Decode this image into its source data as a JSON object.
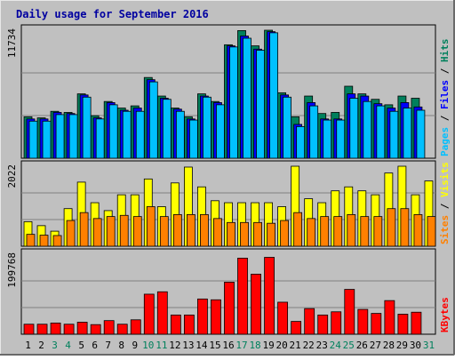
{
  "chart_data": {
    "type": "bar",
    "title": "Daily usage for September 2016",
    "days": [
      "1",
      "2",
      "3",
      "4",
      "5",
      "6",
      "7",
      "8",
      "9",
      "10",
      "11",
      "12",
      "13",
      "14",
      "15",
      "16",
      "17",
      "18",
      "19",
      "20",
      "21",
      "22",
      "23",
      "24",
      "25",
      "26",
      "27",
      "28",
      "29",
      "30",
      "31"
    ],
    "weekend_days": [
      "3",
      "4",
      "10",
      "11",
      "17",
      "18",
      "24",
      "25",
      "31"
    ],
    "panels": [
      {
        "id": "hits",
        "max_label": "11734",
        "ymax": 11734,
        "legend": [
          "Pages",
          "Files",
          "Hits"
        ],
        "series": [
          {
            "name": "Hits",
            "color": "#00805c",
            "values": [
              3800,
              3700,
              4300,
              4200,
              5900,
              3900,
              5200,
              4600,
              4800,
              7400,
              5700,
              4600,
              3800,
              5900,
              5200,
              10400,
              11700,
              10300,
              11734,
              6000,
              3800,
              5700,
              4100,
              4200,
              6600,
              5900,
              5400,
              4900,
              5700,
              5500,
              0
            ]
          },
          {
            "name": "Files",
            "color": "#0000ff",
            "values": [
              3600,
              3600,
              4200,
              4100,
              5800,
              3700,
              5100,
              4400,
              4600,
              7200,
              5500,
              4500,
              3600,
              5700,
              5100,
              10300,
              11200,
              10000,
              11600,
              5800,
              3100,
              5100,
              3600,
              3600,
              5900,
              5700,
              5000,
              4600,
              5100,
              4700,
              0
            ]
          },
          {
            "name": "Pages",
            "color": "#00c0ff",
            "values": [
              3400,
              3400,
              4000,
              4000,
              5600,
              3600,
              4900,
              4300,
              4300,
              7000,
              5400,
              4300,
              3500,
              5600,
              4900,
              10200,
              11000,
              9900,
              11500,
              5600,
              2900,
              4800,
              3500,
              3500,
              5500,
              5200,
              4800,
              4300,
              4600,
              4400,
              0
            ]
          }
        ]
      },
      {
        "id": "visits",
        "max_label": "2022",
        "ymax": 2022,
        "legend": [
          "Sites",
          "Visits"
        ],
        "series": [
          {
            "name": "Visits",
            "color": "#ffff00",
            "values": [
              620,
              520,
              380,
              950,
              1620,
              1100,
              900,
              1300,
              1300,
              1700,
              1000,
              1600,
              2000,
              1500,
              1150,
              1100,
              1100,
              1100,
              1100,
              1000,
              2022,
              1200,
              1100,
              1400,
              1500,
              1400,
              1300,
              1850,
              2022,
              1300,
              1650
            ]
          },
          {
            "name": "Sites",
            "color": "#ff8000",
            "values": [
              300,
              280,
              270,
              650,
              850,
              700,
              750,
              780,
              750,
              1000,
              750,
              800,
              800,
              800,
              700,
              600,
              600,
              600,
              580,
              650,
              850,
              700,
              750,
              750,
              800,
              750,
              750,
              950,
              950,
              800,
              750
            ]
          }
        ]
      },
      {
        "id": "kbytes",
        "max_label": "199768",
        "ymax": 199768,
        "legend": [
          "KBytes"
        ],
        "series": [
          {
            "name": "KBytes",
            "color": "#ff0000",
            "values": [
              25000,
              25000,
              28000,
              25000,
              30000,
              24000,
              34000,
              25000,
              36000,
              100000,
              106000,
              48000,
              48000,
              88000,
              86000,
              130000,
              190000,
              150000,
              192000,
              80000,
              32000,
              64000,
              48000,
              56000,
              112000,
              62000,
              52000,
              84000,
              50000,
              55000,
              0
            ]
          }
        ]
      }
    ]
  }
}
